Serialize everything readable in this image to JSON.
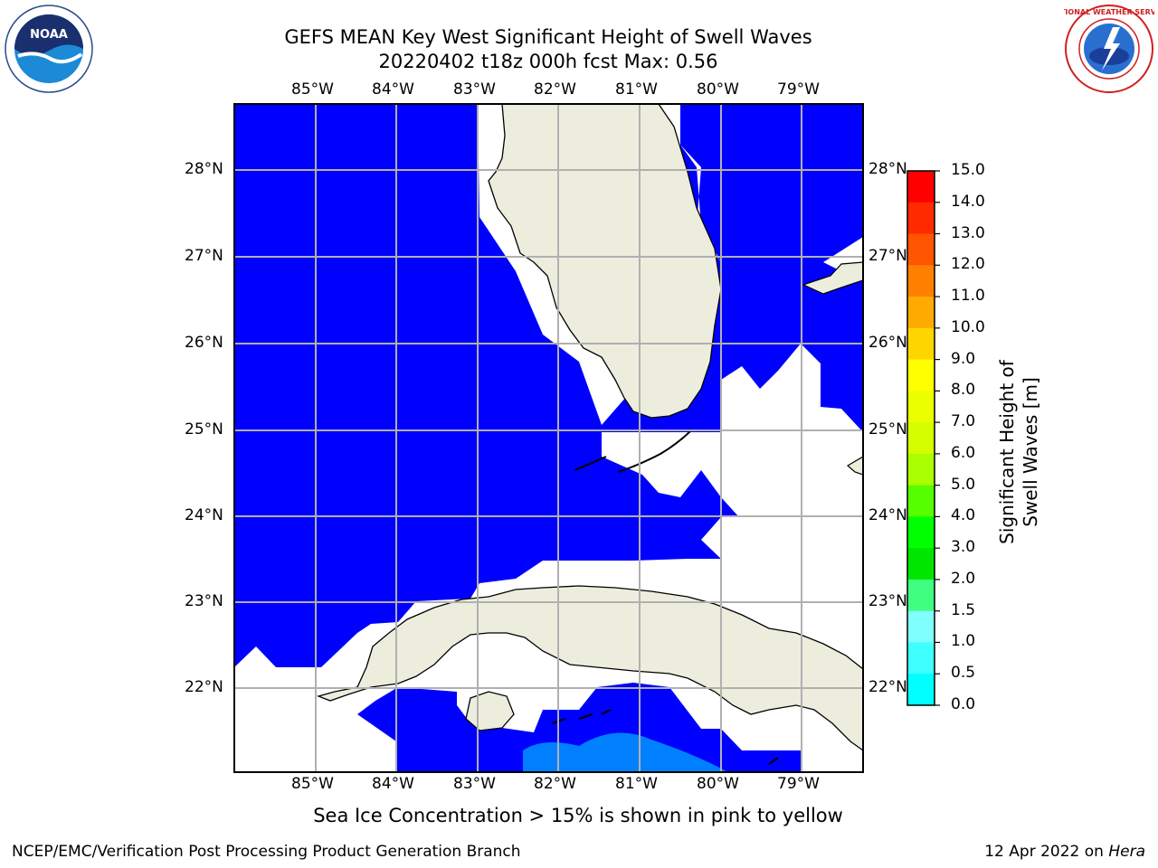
{
  "header": {
    "title_line1": "GEFS MEAN Key West Significant Height of Swell Waves",
    "title_line2": "20220402 t18z 000h fcst   Max: 0.56"
  },
  "logos": {
    "left": {
      "icon": "noaa-logo",
      "text": "NOAA"
    },
    "right": {
      "icon": "national-weather-service-logo",
      "text": "NATIONAL WEATHER SERVICE"
    }
  },
  "map": {
    "lon_labels": [
      "85°W",
      "84°W",
      "83°W",
      "82°W",
      "81°W",
      "80°W",
      "79°W"
    ],
    "lat_labels": [
      "28°N",
      "27°N",
      "26°N",
      "25°N",
      "24°N",
      "23°N",
      "22°N"
    ],
    "colors": {
      "ocean_0_0_5": "#0000ff",
      "ocean_0_5_1_0": "#0080ff",
      "land": "#ededde",
      "no_data": "#ffffff",
      "grid": "#b0b0b0"
    }
  },
  "colorbar": {
    "ticks": [
      "15.0",
      "14.0",
      "13.0",
      "12.0",
      "11.0",
      "10.0",
      "9.0",
      "8.0",
      "7.0",
      "6.0",
      "5.0",
      "4.0",
      "3.0",
      "2.0",
      "1.5",
      "1.0",
      "0.5",
      "0.0"
    ],
    "colors": [
      "#ff0000",
      "#ff2a00",
      "#ff5500",
      "#ff8000",
      "#ffaa00",
      "#ffd500",
      "#ffff00",
      "#eaff00",
      "#d5ff00",
      "#aaff00",
      "#55ff00",
      "#00ff00",
      "#00e600",
      "#40ff80",
      "#80ffff",
      "#40ffff",
      "#00ffff",
      "#0080ff",
      "#0000ff"
    ],
    "label": "Significant Height of Swell Waves [m]"
  },
  "notes": {
    "sea_ice": "Sea Ice Concentration > 15% is shown in pink to yellow"
  },
  "footer": {
    "left": "NCEP/EMC/Verification Post Processing Product Generation Branch",
    "right_date": "12 Apr 2022 on ",
    "right_host": "Hera"
  }
}
